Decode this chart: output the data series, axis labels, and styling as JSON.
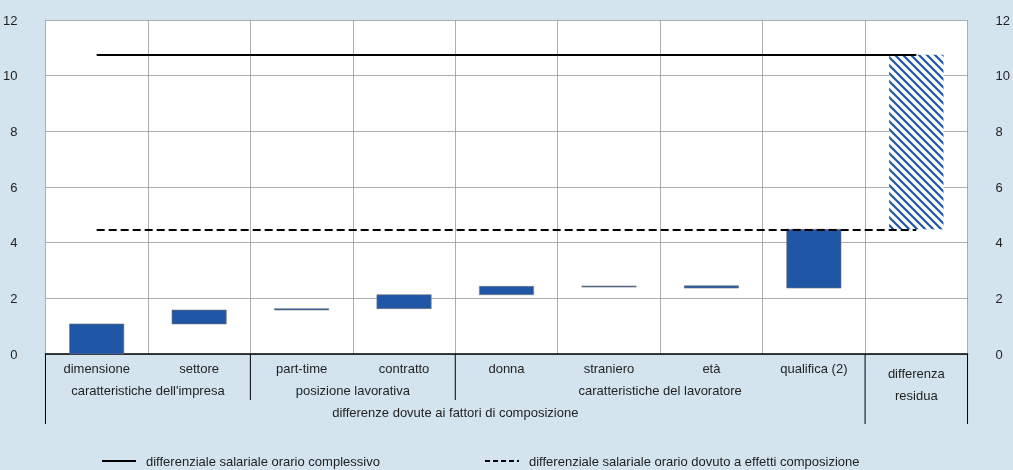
{
  "chart_data": {
    "type": "bar",
    "categories": [
      "dimensione",
      "settore",
      "part-time",
      "contratto",
      "donna",
      "straniero",
      "età",
      "qualifica (2)",
      "differenza residua"
    ],
    "base": [
      0,
      1.08,
      1.58,
      1.63,
      2.13,
      2.42,
      2.37,
      2.37,
      4.48
    ],
    "values": [
      1.08,
      0.5,
      0.05,
      0.5,
      0.3,
      0.02,
      0.08,
      2.11,
      6.27
    ],
    "colors": [
      "#1f56a5",
      "#1f56a5",
      "#1f56a5",
      "#1f56a5",
      "#1f56a5",
      "#1f56a5",
      "#1f56a5",
      "#1f56a5",
      "#1f56a5"
    ],
    "ylim": [
      0,
      12
    ],
    "yticks": [
      0,
      2,
      4,
      6,
      8,
      10,
      12
    ],
    "y2lim": [
      0,
      12
    ],
    "y2ticks": [
      0,
      2,
      4,
      6,
      8,
      10,
      12
    ],
    "grid": true,
    "legend": "bottom",
    "ref_lines": [
      {
        "axis": "y",
        "value": 10.75,
        "label": "differenziale salariale orario complessivo",
        "color": "#000000",
        "line_style": "solid"
      },
      {
        "axis": "y",
        "value": 4.48,
        "label": "differenziale salariale orario dovuto a effetti composizione",
        "color": "#000000",
        "line_style": "dashed"
      }
    ],
    "annotations": [
      "caratteristiche dell'impresa",
      "posizione lavorativa",
      "caratteristiche del lavoratore",
      "differenze dovute ai fattori di composizione"
    ]
  }
}
